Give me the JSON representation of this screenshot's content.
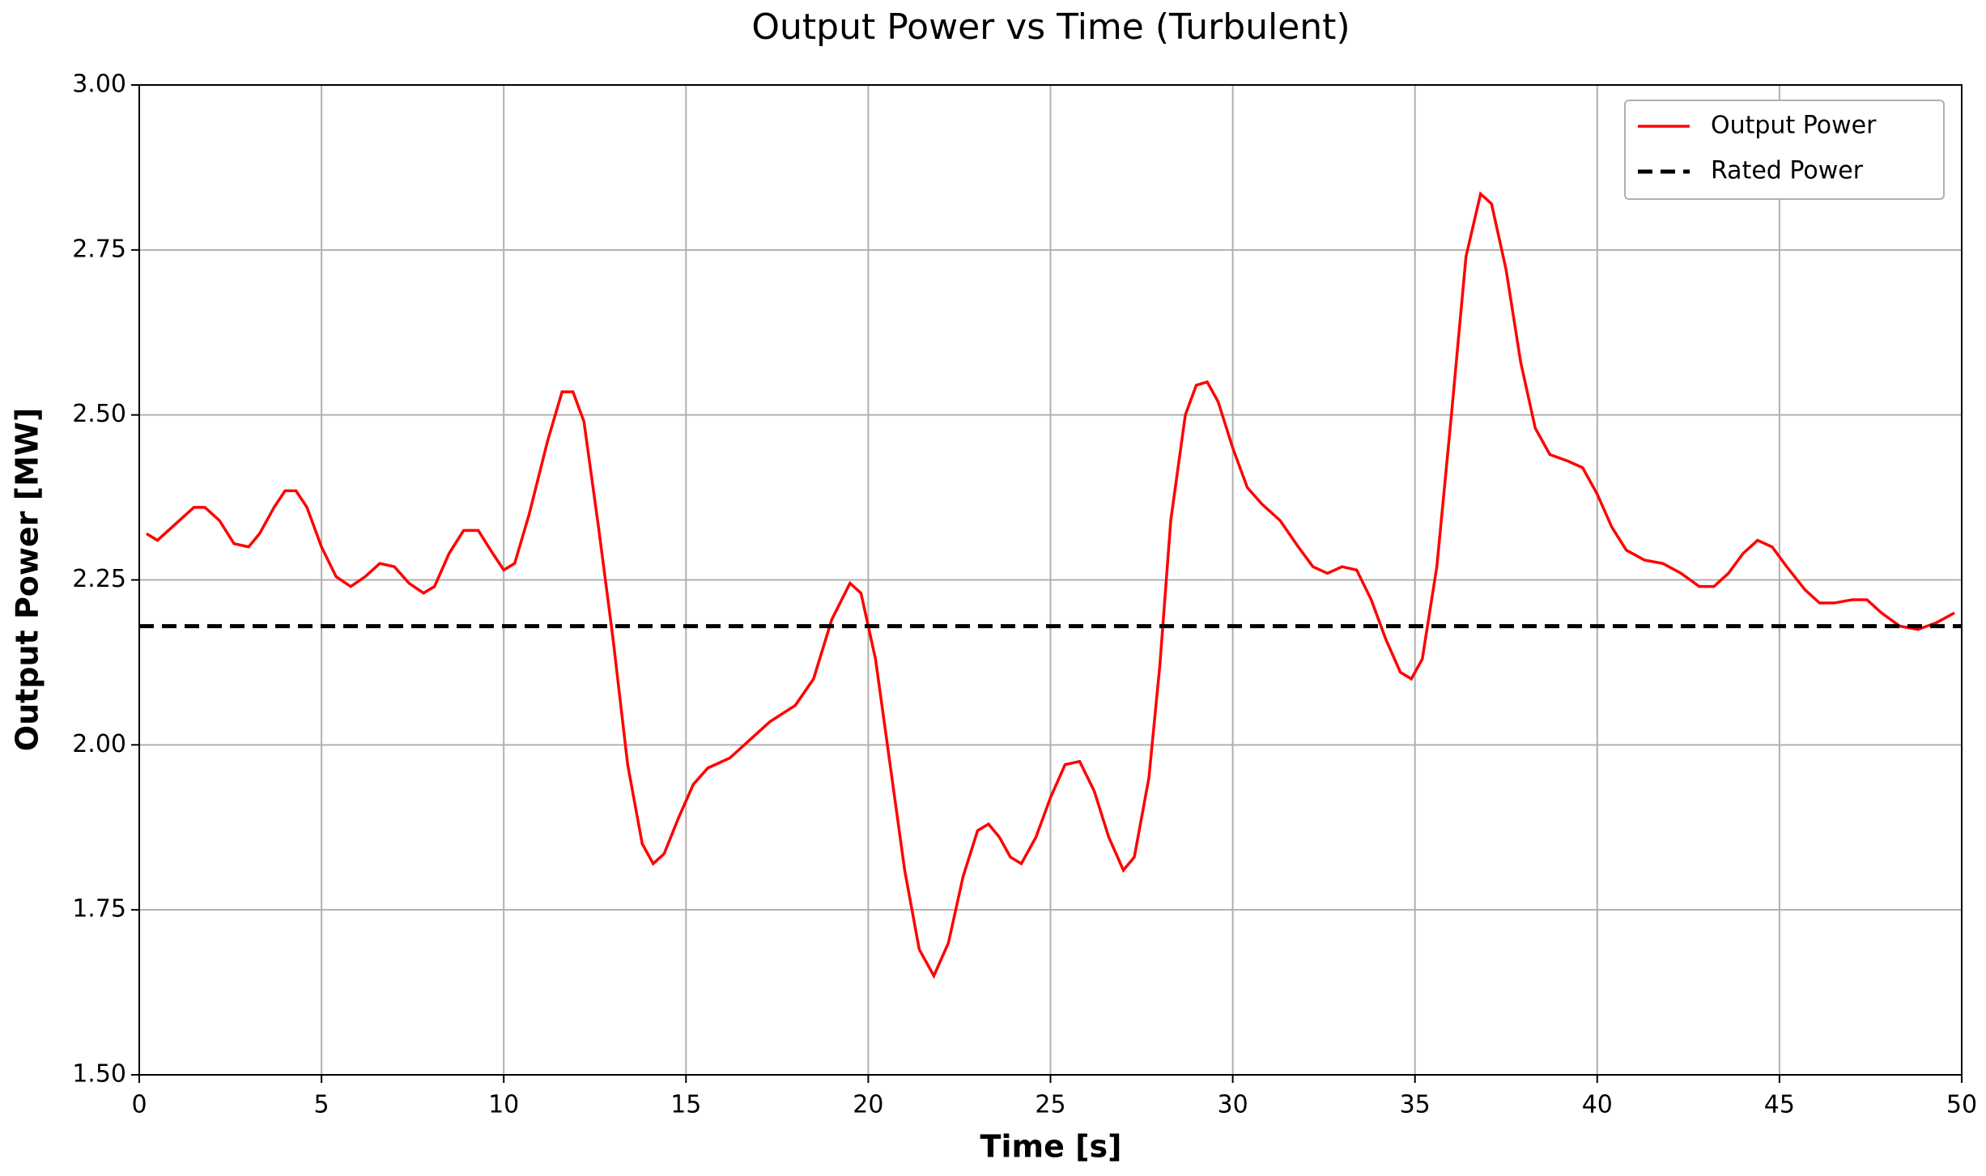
{
  "chart_data": {
    "type": "line",
    "title": "Output Power vs Time (Turbulent)",
    "x_label": "Time [s]",
    "y_label": "Output Power [MW]",
    "xlim": [
      0,
      50
    ],
    "xticks": [
      0,
      5,
      10,
      15,
      20,
      25,
      30,
      35,
      40,
      45,
      50
    ],
    "ylim": [
      1.5,
      3.0
    ],
    "yticks": [
      {
        "value": 1.5,
        "label": "1.50"
      },
      {
        "value": 1.75,
        "label": "1.75"
      },
      {
        "value": 2.0,
        "label": "2.00"
      },
      {
        "value": 2.25,
        "label": "2.25"
      },
      {
        "value": 2.5,
        "label": "2.50"
      },
      {
        "value": 2.75,
        "label": "2.75"
      },
      {
        "value": 3.0,
        "label": "3.00"
      }
    ],
    "grid": true,
    "legend": "upper right",
    "series": [
      {
        "name": "Output Power",
        "color": "#ff0000",
        "dash": "solid",
        "x": [
          0.2,
          0.5,
          1,
          1.5,
          1.8,
          2.2,
          2.6,
          3,
          3.3,
          3.7,
          4,
          4.3,
          4.6,
          5,
          5.4,
          5.8,
          6.2,
          6.6,
          7,
          7.4,
          7.8,
          8.1,
          8.5,
          8.9,
          9.3,
          9.7,
          10,
          10.3,
          10.7,
          11.2,
          11.6,
          11.9,
          12.2,
          12.6,
          13,
          13.4,
          13.8,
          14.1,
          14.4,
          14.8,
          15.2,
          15.6,
          16.2,
          16.8,
          17.3,
          18,
          18.5,
          19,
          19.5,
          19.8,
          20.2,
          20.6,
          21,
          21.4,
          21.8,
          22.2,
          22.6,
          23,
          23.3,
          23.6,
          23.9,
          24.2,
          24.6,
          25,
          25.4,
          25.8,
          26.2,
          26.6,
          27,
          27.3,
          27.7,
          28,
          28.3,
          28.7,
          29,
          29.3,
          29.6,
          30,
          30.4,
          30.8,
          31.3,
          31.8,
          32.2,
          32.6,
          33,
          33.4,
          33.8,
          34.2,
          34.6,
          34.9,
          35.2,
          35.6,
          36,
          36.4,
          36.8,
          37.1,
          37.5,
          37.9,
          38.3,
          38.7,
          39.2,
          39.6,
          40,
          40.4,
          40.8,
          41.3,
          41.8,
          42.3,
          42.8,
          43.2,
          43.6,
          44,
          44.4,
          44.8,
          45.2,
          45.7,
          46.1,
          46.5,
          47,
          47.4,
          47.8,
          48.3,
          48.8,
          49.3,
          49.8
        ],
        "values": [
          2.32,
          2.31,
          2.335,
          2.36,
          2.36,
          2.34,
          2.305,
          2.3,
          2.32,
          2.36,
          2.385,
          2.385,
          2.36,
          2.3,
          2.255,
          2.24,
          2.255,
          2.275,
          2.27,
          2.245,
          2.23,
          2.24,
          2.29,
          2.325,
          2.325,
          2.29,
          2.265,
          2.275,
          2.35,
          2.46,
          2.535,
          2.535,
          2.49,
          2.33,
          2.16,
          1.97,
          1.85,
          1.82,
          1.835,
          1.89,
          1.94,
          1.965,
          1.98,
          2.01,
          2.035,
          2.06,
          2.1,
          2.19,
          2.245,
          2.23,
          2.13,
          1.97,
          1.81,
          1.69,
          1.65,
          1.7,
          1.8,
          1.87,
          1.88,
          1.86,
          1.83,
          1.82,
          1.86,
          1.92,
          1.97,
          1.975,
          1.93,
          1.86,
          1.81,
          1.83,
          1.95,
          2.12,
          2.34,
          2.5,
          2.545,
          2.55,
          2.52,
          2.45,
          2.39,
          2.365,
          2.34,
          2.3,
          2.27,
          2.26,
          2.27,
          2.265,
          2.22,
          2.16,
          2.11,
          2.1,
          2.13,
          2.27,
          2.5,
          2.74,
          2.835,
          2.82,
          2.72,
          2.58,
          2.48,
          2.44,
          2.43,
          2.42,
          2.38,
          2.33,
          2.295,
          2.28,
          2.275,
          2.26,
          2.24,
          2.24,
          2.26,
          2.29,
          2.31,
          2.3,
          2.27,
          2.235,
          2.215,
          2.215,
          2.22,
          2.22,
          2.2,
          2.18,
          2.175,
          2.185,
          2.2
        ]
      },
      {
        "name": "Rated Power",
        "color": "#000000",
        "dash": "dashed",
        "x": [
          0,
          50
        ],
        "values": [
          2.18,
          2.18
        ]
      }
    ]
  }
}
